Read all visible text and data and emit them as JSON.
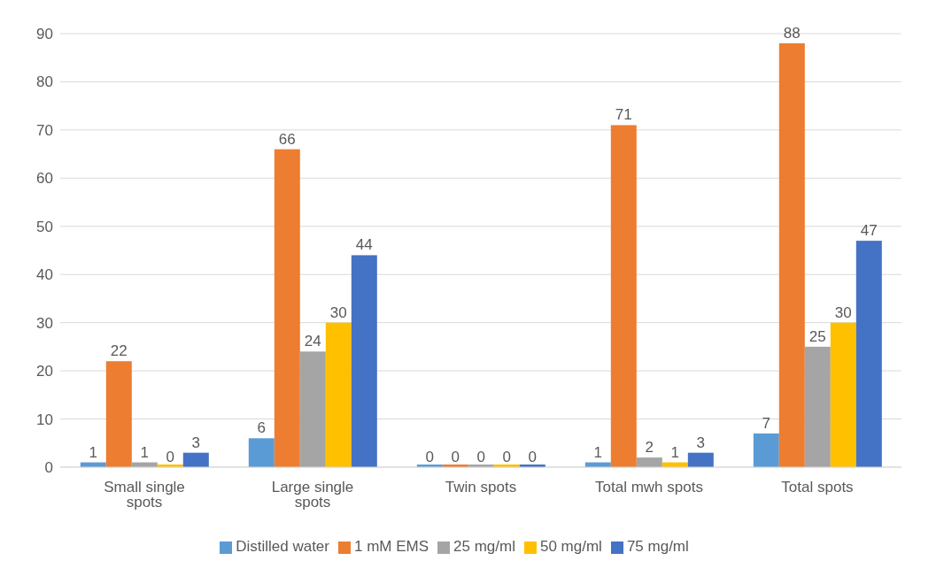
{
  "chart_data": {
    "type": "bar",
    "categories": [
      "Small single spots",
      "Large single spots",
      "Twin spots",
      "Total mwh spots",
      "Total spots"
    ],
    "series": [
      {
        "name": "Distilled water",
        "color": "#5b9bd5",
        "values": [
          1,
          6,
          0,
          1,
          7
        ]
      },
      {
        "name": "1 mM EMS",
        "color": "#ed7d31",
        "values": [
          22,
          66,
          0,
          71,
          88
        ]
      },
      {
        "name": "25 mg/ml",
        "color": "#a5a5a5",
        "values": [
          1,
          24,
          0,
          2,
          25
        ]
      },
      {
        "name": "50 mg/ml",
        "color": "#ffc000",
        "values": [
          0,
          30,
          0,
          1,
          30
        ]
      },
      {
        "name": "75 mg/ml",
        "color": "#4472c4",
        "values": [
          3,
          44,
          0,
          3,
          47
        ]
      }
    ],
    "ylim": [
      0,
      90
    ],
    "yticks": [
      0,
      10,
      20,
      30,
      40,
      50,
      60,
      70,
      80,
      90
    ],
    "grid": "y",
    "legend": "bottom",
    "data_labels": true
  }
}
